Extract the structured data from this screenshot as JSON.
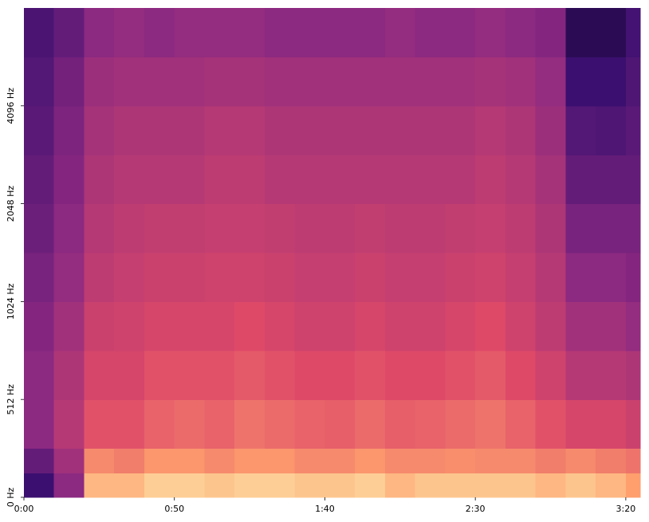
{
  "chart_data": {
    "type": "heatmap",
    "colormap": [
      "#000004",
      "#3b0f70",
      "#8c2981",
      "#de4968",
      "#fe9f6d",
      "#fcfdbf"
    ],
    "zlim": [
      0,
      100
    ],
    "xlim": [
      0,
      204.8
    ],
    "xticks": [
      {
        "value": 0,
        "label": "0:00"
      },
      {
        "value": 50,
        "label": "0:50"
      },
      {
        "value": 100,
        "label": "1:40"
      },
      {
        "value": 150,
        "label": "2:30"
      },
      {
        "value": 200,
        "label": "3:20"
      }
    ],
    "ylim": [
      0,
      8192
    ],
    "yscale": "symlog",
    "yticks": [
      {
        "value": 0,
        "label": "0 Hz"
      },
      {
        "value": 512,
        "label": "512 Hz"
      },
      {
        "value": 1024,
        "label": "1024 Hz"
      },
      {
        "value": 2048,
        "label": "2048 Hz"
      },
      {
        "value": 4096,
        "label": "4096 Hz"
      }
    ],
    "time_bins": [
      0,
      10,
      20,
      30,
      40,
      50,
      60,
      70,
      80,
      90,
      100,
      110,
      120,
      130,
      140,
      150,
      160,
      170,
      180,
      190,
      200,
      204.8
    ],
    "freq_bins": [
      0,
      128,
      256,
      512,
      724,
      1024,
      1448,
      2048,
      2896,
      4096,
      5793,
      8192
    ],
    "z": [
      [
        20,
        40,
        85,
        85,
        90,
        90,
        88,
        90,
        90,
        88,
        88,
        90,
        85,
        88,
        88,
        88,
        88,
        85,
        88,
        85,
        80
      ],
      [
        30,
        45,
        75,
        72,
        78,
        78,
        75,
        78,
        78,
        75,
        75,
        78,
        75,
        75,
        76,
        75,
        75,
        72,
        75,
        72,
        70
      ],
      [
        40,
        50,
        62,
        62,
        66,
        68,
        66,
        70,
        68,
        66,
        65,
        68,
        65,
        66,
        68,
        70,
        66,
        62,
        58,
        58,
        55
      ],
      [
        40,
        48,
        58,
        58,
        62,
        62,
        62,
        64,
        62,
        60,
        60,
        62,
        60,
        60,
        62,
        64,
        60,
        56,
        50,
        50,
        48
      ],
      [
        38,
        45,
        55,
        56,
        58,
        58,
        58,
        60,
        58,
        56,
        56,
        58,
        56,
        56,
        58,
        60,
        56,
        52,
        45,
        45,
        42
      ],
      [
        35,
        42,
        52,
        54,
        55,
        55,
        56,
        56,
        55,
        54,
        54,
        55,
        54,
        54,
        55,
        56,
        54,
        50,
        40,
        40,
        38
      ],
      [
        32,
        40,
        50,
        52,
        53,
        53,
        54,
        54,
        53,
        52,
        52,
        53,
        52,
        52,
        53,
        54,
        52,
        48,
        35,
        35,
        35
      ],
      [
        30,
        38,
        48,
        50,
        50,
        50,
        52,
        52,
        50,
        50,
        50,
        50,
        50,
        50,
        50,
        52,
        50,
        46,
        30,
        30,
        30
      ],
      [
        28,
        36,
        46,
        48,
        48,
        48,
        50,
        50,
        48,
        48,
        48,
        48,
        48,
        48,
        48,
        50,
        48,
        44,
        26,
        25,
        28
      ],
      [
        26,
        34,
        44,
        45,
        45,
        45,
        46,
        46,
        45,
        45,
        45,
        45,
        45,
        45,
        45,
        46,
        45,
        42,
        20,
        20,
        25
      ],
      [
        24,
        30,
        40,
        42,
        40,
        42,
        42,
        42,
        40,
        40,
        40,
        40,
        42,
        40,
        40,
        42,
        40,
        38,
        15,
        15,
        22
      ]
    ]
  }
}
